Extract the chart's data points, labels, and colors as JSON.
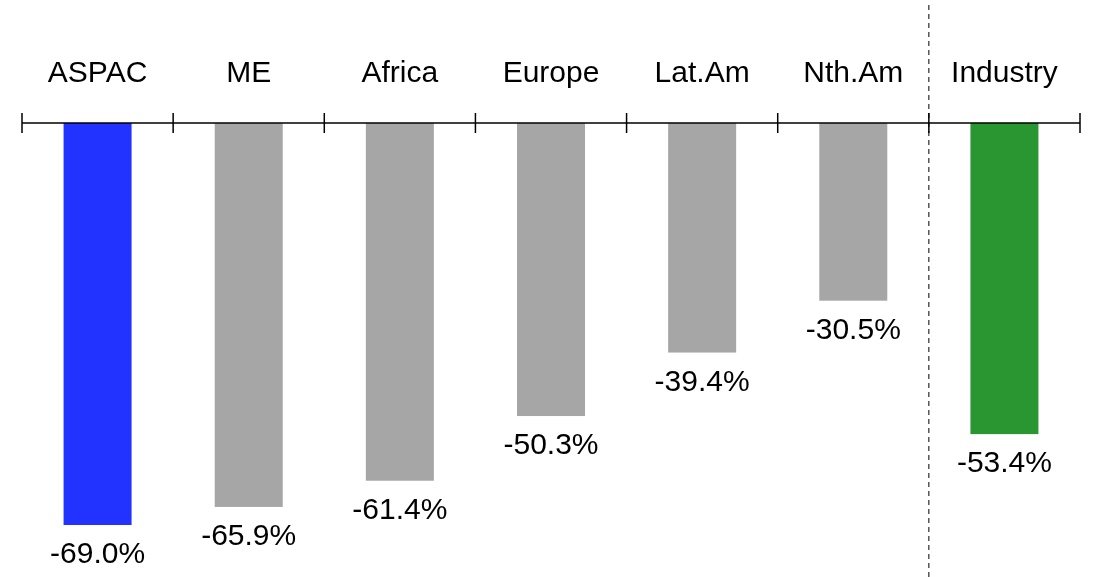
{
  "chart_data": {
    "type": "bar",
    "categories": [
      "ASPAC",
      "ME",
      "Africa",
      "Europe",
      "Lat.Am",
      "Nth.Am",
      "Industry"
    ],
    "values": [
      -69.0,
      -65.9,
      -61.4,
      -50.3,
      -39.4,
      -30.5,
      -53.4
    ],
    "value_labels": [
      "-69.0%",
      "-65.9%",
      "-61.4%",
      "-50.3%",
      "-39.4%",
      "-30.5%",
      "-53.4%"
    ],
    "colors": [
      "#2233ff",
      "#a6a6a6",
      "#a6a6a6",
      "#a6a6a6",
      "#a6a6a6",
      "#a6a6a6",
      "#2a9632"
    ]
  }
}
